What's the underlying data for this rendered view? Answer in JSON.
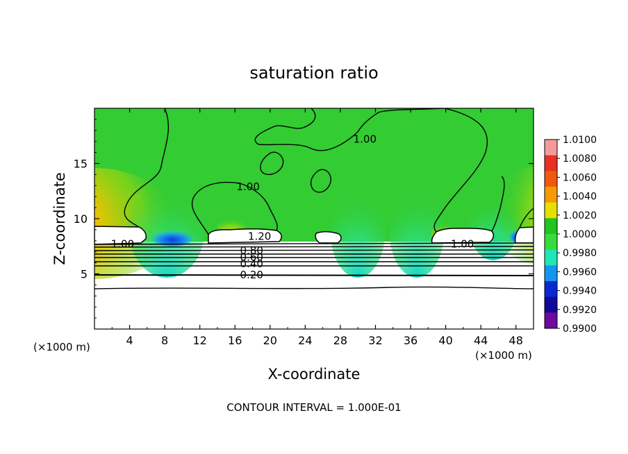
{
  "chart_data": {
    "type": "heatmap",
    "title": "saturation ratio",
    "xlabel": "X-coordinate",
    "ylabel": "Z-coordinate",
    "x_unit_label": "(×1000 m)",
    "x_unit_label_right": "(×1000 m)",
    "xlim": [
      0,
      50
    ],
    "ylim": [
      0,
      20
    ],
    "x_ticks": [
      "4",
      "8",
      "12",
      "16",
      "20",
      "24",
      "28",
      "32",
      "36",
      "40",
      "44",
      "48"
    ],
    "y_ticks": [
      "5",
      "10",
      "15"
    ],
    "footer": "CONTOUR INTERVAL = 1.000E-01",
    "colorbar": {
      "labels": [
        "1.0100",
        "1.0080",
        "1.0060",
        "1.0040",
        "1.0020",
        "1.0000",
        "0.9980",
        "0.9960",
        "0.9940",
        "0.9920",
        "0.9900"
      ],
      "colors": [
        "#f49a9a",
        "#e83025",
        "#f05a10",
        "#f59a00",
        "#e6e000",
        "#22c41e",
        "#35dc3c",
        "#1ee6b4",
        "#1496f0",
        "#0a28d2",
        "#12089a",
        "#6e0aa0"
      ]
    },
    "contour_labels": [
      {
        "text": "1.00",
        "x": 30.8,
        "z": 17.2
      },
      {
        "text": "1.00",
        "x": 17.5,
        "z": 12.9
      },
      {
        "text": "1.00",
        "x": 3.2,
        "z": 7.7
      },
      {
        "text": "1.00",
        "x": 41.9,
        "z": 7.7
      },
      {
        "text": "1.20",
        "x": 18.8,
        "z": 8.4
      },
      {
        "text": "0.80",
        "x": 17.9,
        "z": 7.1
      },
      {
        "text": "0.60",
        "x": 17.9,
        "z": 6.5
      },
      {
        "text": "0.40",
        "x": 17.9,
        "z": 5.9
      },
      {
        "text": "0.20",
        "x": 17.9,
        "z": 4.9
      }
    ]
  }
}
